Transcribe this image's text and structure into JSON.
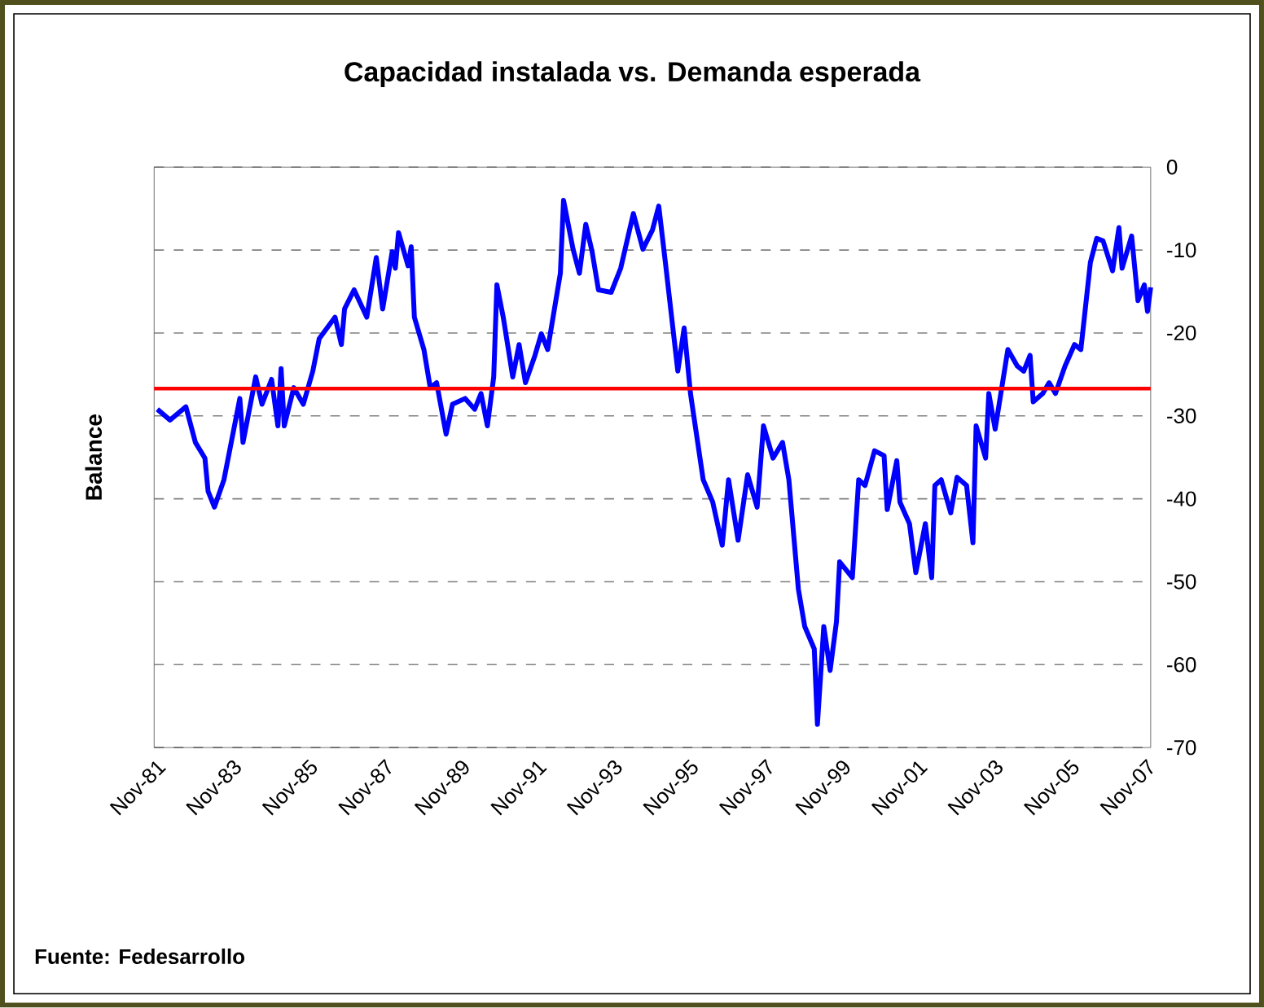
{
  "chart_data": {
    "type": "line",
    "title": "Capacidad instalada vs. Demanda esperada",
    "ylabel": "Balance",
    "annotations": [
      "Fuente: Fedesarrollo"
    ],
    "x": [
      "1981-12",
      "1982-04",
      "1982-09",
      "1982-12",
      "1983-03",
      "1983-04",
      "1983-06",
      "1983-09",
      "1984-02",
      "1984-03",
      "1984-07",
      "1984-09",
      "1984-12",
      "1985-02",
      "1985-03",
      "1985-04",
      "1985-07",
      "1985-10",
      "1986-01",
      "1986-03",
      "1986-08",
      "1986-10",
      "1986-11",
      "1987-02",
      "1987-06",
      "1987-09",
      "1987-11",
      "1988-02",
      "1988-03",
      "1988-04",
      "1988-07",
      "1988-08",
      "1988-09",
      "1988-12",
      "1989-02",
      "1989-04",
      "1989-07",
      "1989-09",
      "1990-01",
      "1990-04",
      "1990-06",
      "1990-08",
      "1990-10",
      "1990-11",
      "1991-01",
      "1991-04",
      "1991-06",
      "1991-08",
      "1991-11",
      "1992-01",
      "1992-03",
      "1992-05",
      "1992-07",
      "1992-08",
      "1992-11",
      "1993-01",
      "1993-03",
      "1993-05",
      "1993-07",
      "1993-11",
      "1994-02",
      "1994-06",
      "1994-09",
      "1994-12",
      "1995-02",
      "1995-04",
      "1995-08",
      "1995-10",
      "1995-12",
      "1996-02",
      "1996-04",
      "1996-07",
      "1996-10",
      "1996-12",
      "1997-03",
      "1997-06",
      "1997-09",
      "1997-11",
      "1998-02",
      "1998-05",
      "1998-07",
      "1998-10",
      "1998-12",
      "1999-03",
      "1999-04",
      "1999-06",
      "1999-08",
      "1999-10",
      "1999-11",
      "2000-03",
      "2000-05",
      "2000-07",
      "2000-10",
      "2001-01",
      "2001-02",
      "2001-05",
      "2001-06",
      "2001-09",
      "2001-11",
      "2002-02",
      "2002-04",
      "2002-05",
      "2002-07",
      "2002-10",
      "2002-12",
      "2003-03",
      "2003-05",
      "2003-06",
      "2003-09",
      "2003-10",
      "2003-12",
      "2004-04",
      "2004-07",
      "2004-09",
      "2004-11",
      "2004-12",
      "2005-03",
      "2005-05",
      "2005-07",
      "2005-10",
      "2006-01",
      "2006-03",
      "2006-06",
      "2006-08",
      "2006-10",
      "2007-01",
      "2007-03",
      "2007-04",
      "2007-07",
      "2007-09",
      "2007-11",
      "2007-12",
      "2008-01"
    ],
    "series": [
      {
        "color": "#0000ff",
        "values": [
          -29.2,
          -30.5,
          -28.9,
          -33.2,
          -35.1,
          -39.1,
          -41.0,
          -37.7,
          -27.9,
          -33.2,
          -25.3,
          -28.6,
          -25.6,
          -31.2,
          -24.3,
          -31.2,
          -26.6,
          -28.6,
          -24.6,
          -20.7,
          -18.1,
          -21.4,
          -17.1,
          -14.8,
          -18.1,
          -10.9,
          -17.1,
          -10.2,
          -12.2,
          -7.9,
          -11.9,
          -9.6,
          -18.1,
          -22.0,
          -26.6,
          -26.0,
          -32.2,
          -28.6,
          -27.9,
          -29.2,
          -27.3,
          -31.2,
          -25.3,
          -14.2,
          -18.1,
          -25.3,
          -21.4,
          -26.0,
          -22.7,
          -20.1,
          -22.0,
          -17.4,
          -12.8,
          -4.0,
          -9.9,
          -12.8,
          -6.9,
          -10.2,
          -14.8,
          -15.1,
          -12.2,
          -5.6,
          -9.9,
          -7.6,
          -4.7,
          -11.2,
          -24.6,
          -19.4,
          -27.3,
          -32.5,
          -37.7,
          -40.4,
          -45.6,
          -37.7,
          -45.0,
          -37.1,
          -41.0,
          -31.2,
          -35.1,
          -33.2,
          -37.7,
          -50.9,
          -55.4,
          -58.1,
          -67.2,
          -55.4,
          -60.7,
          -54.8,
          -47.6,
          -49.5,
          -37.7,
          -38.4,
          -34.2,
          -34.8,
          -41.3,
          -35.4,
          -40.4,
          -43.0,
          -48.9,
          -43.0,
          -49.5,
          -38.4,
          -37.7,
          -41.7,
          -37.4,
          -38.4,
          -45.3,
          -31.2,
          -35.1,
          -27.3,
          -31.6,
          -22.0,
          -24.0,
          -24.6,
          -22.7,
          -28.3,
          -27.3,
          -26.0,
          -27.3,
          -24.0,
          -21.4,
          -22.0,
          -11.5,
          -8.6,
          -8.9,
          -12.5,
          -7.3,
          -12.2,
          -8.3,
          -16.1,
          -14.2,
          -17.4,
          -14.5
        ]
      }
    ],
    "xlim": [
      "1981-11",
      "2008-01"
    ],
    "xticks": [
      {
        "value": "1981-11",
        "label": "Nov-81"
      },
      {
        "value": "1983-11",
        "label": "Nov-83"
      },
      {
        "value": "1985-11",
        "label": "Nov-85"
      },
      {
        "value": "1987-11",
        "label": "Nov-87"
      },
      {
        "value": "1989-11",
        "label": "Nov-89"
      },
      {
        "value": "1991-11",
        "label": "Nov-91"
      },
      {
        "value": "1993-11",
        "label": "Nov-93"
      },
      {
        "value": "1995-11",
        "label": "Nov-95"
      },
      {
        "value": "1997-11",
        "label": "Nov-97"
      },
      {
        "value": "1999-11",
        "label": "Nov-99"
      },
      {
        "value": "2001-11",
        "label": "Nov-01"
      },
      {
        "value": "2003-11",
        "label": "Nov-03"
      },
      {
        "value": "2005-11",
        "label": "Nov-05"
      },
      {
        "value": "2007-11",
        "label": "Nov-07"
      }
    ],
    "ylim": [
      -70,
      0
    ],
    "yticks": [
      -70,
      -60,
      -50,
      -40,
      -30,
      -20,
      -10,
      0
    ],
    "grid": "y",
    "marker": "none",
    "line_style": "solid",
    "ref_lines": [
      {
        "axis": "y",
        "value": -26.7,
        "color": "#ff0000"
      }
    ]
  }
}
